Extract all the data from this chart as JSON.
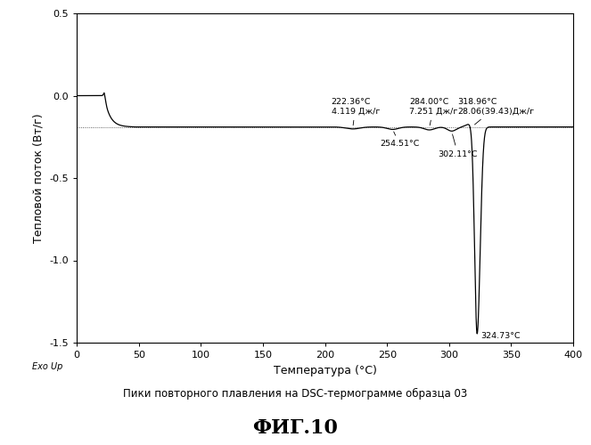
{
  "title": "Пики повторного плавления на DSC-термограмме образца 03",
  "figure_label": "ФИГ.10",
  "xlabel": "Температура (°C)",
  "ylabel": "Тепловой поток (Вт/г)",
  "exo_label": "Exo Up",
  "xlim": [
    0,
    400
  ],
  "ylim": [
    -1.5,
    0.5
  ],
  "yticks": [
    0.5,
    0.0,
    -0.5,
    -1.0,
    -1.5
  ],
  "xticks": [
    0,
    50,
    100,
    150,
    200,
    250,
    300,
    350,
    400
  ],
  "baseline": -0.19,
  "background_color": "#ffffff",
  "line_color": "#000000"
}
